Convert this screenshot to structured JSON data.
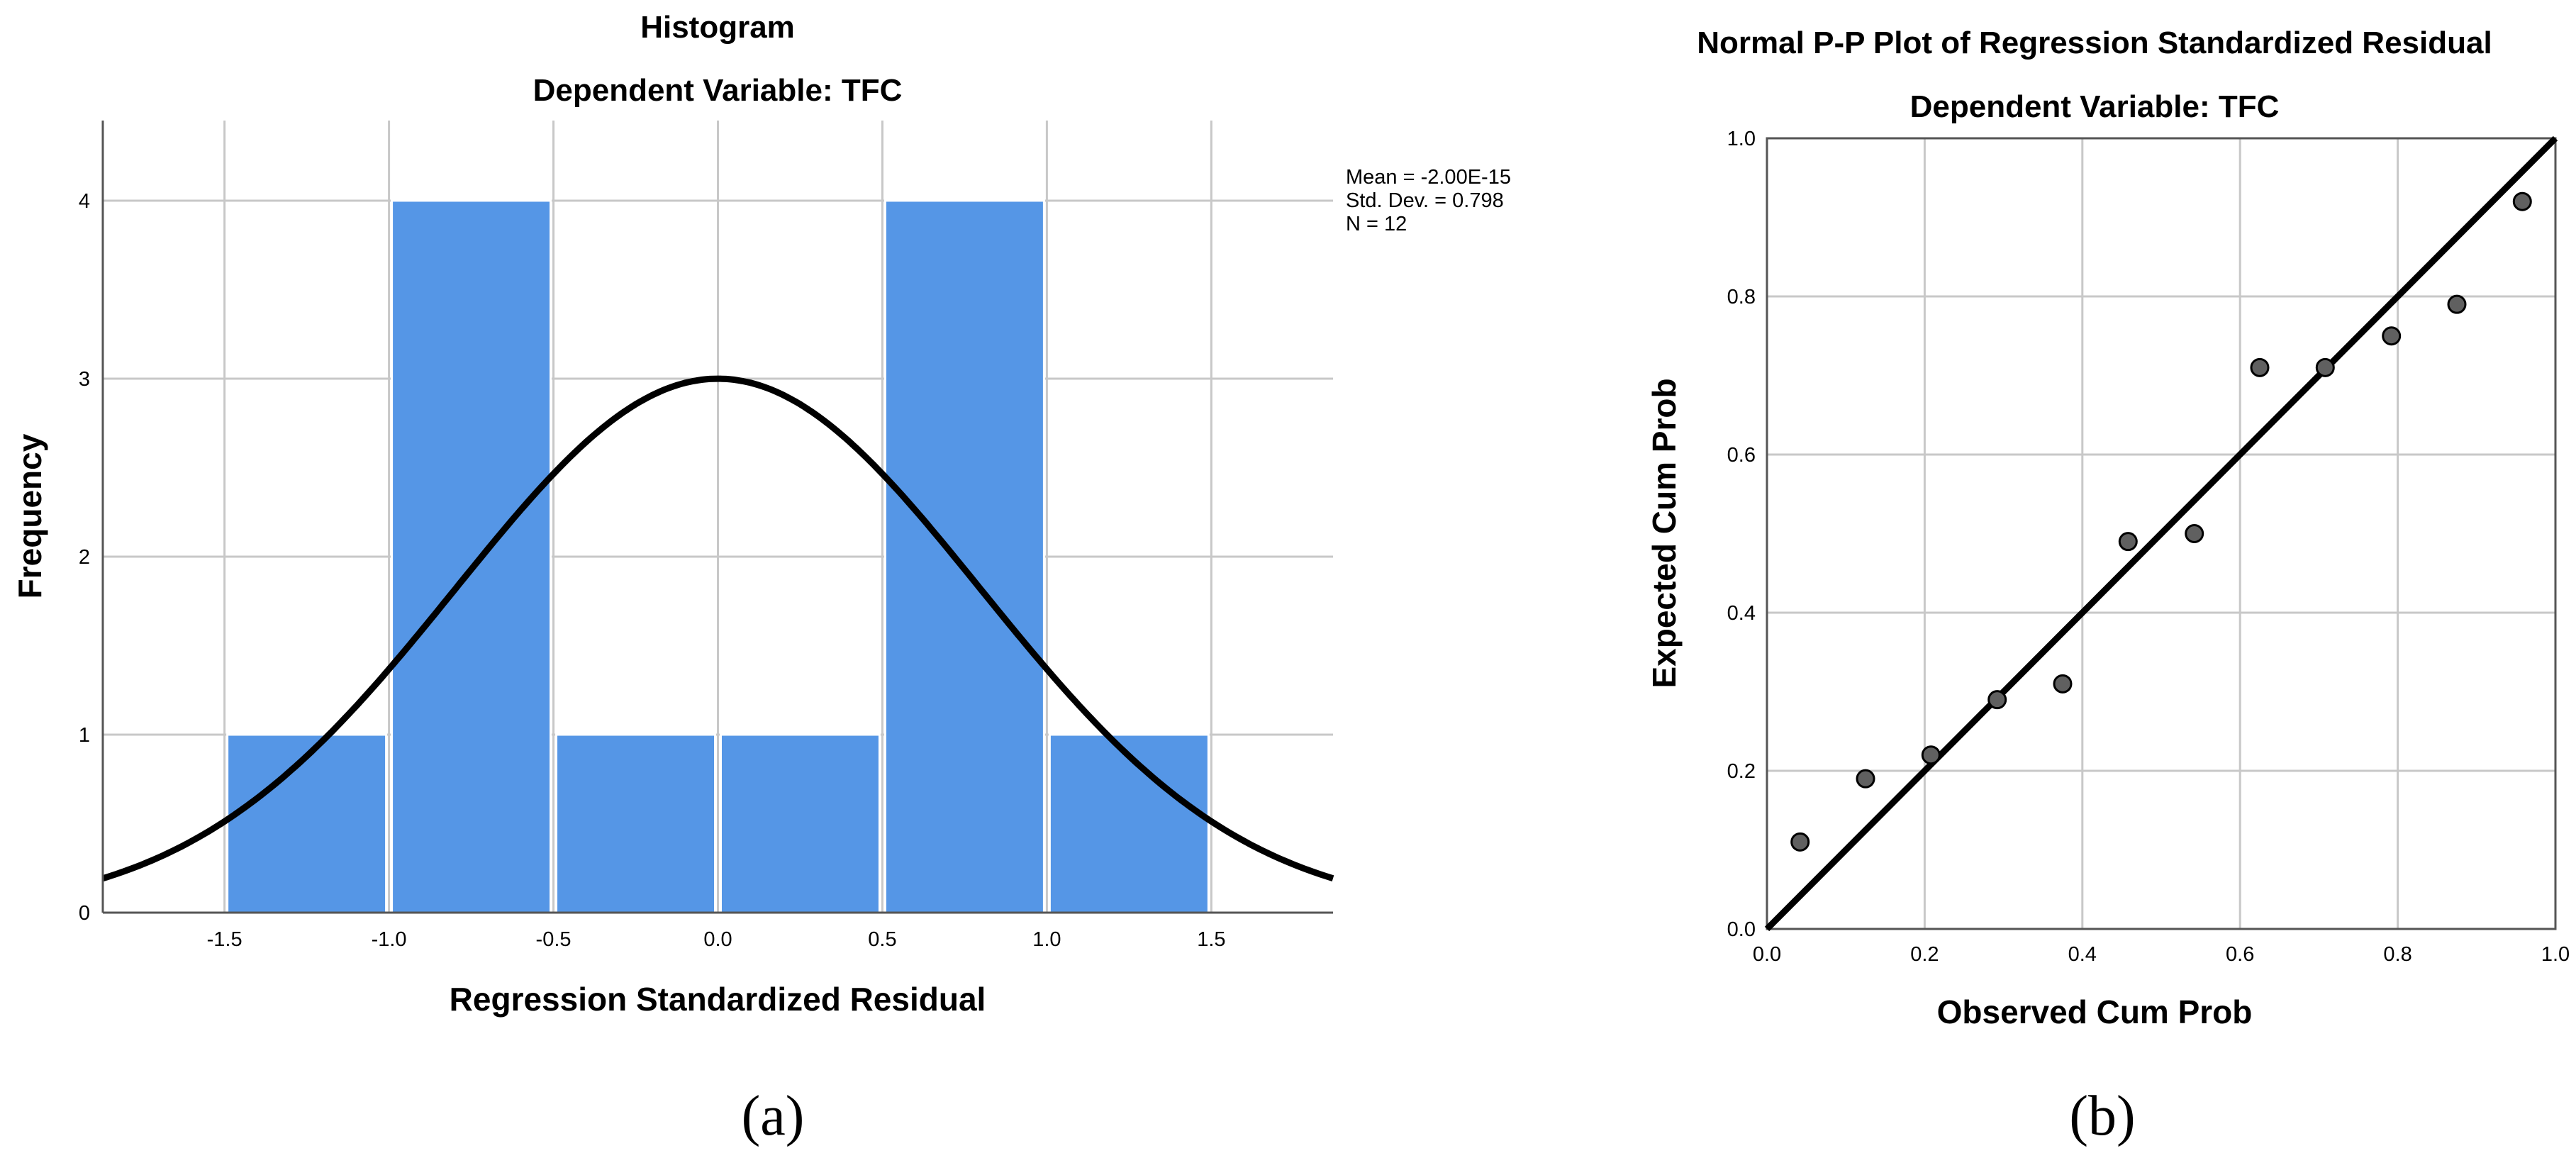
{
  "chart_data": [
    {
      "type": "bar",
      "subtype": "histogram",
      "title": "Histogram",
      "subtitle": "Dependent Variable: TFC",
      "xlabel": "Regression Standardized Residual",
      "ylabel": "Frequency",
      "xlim": [
        -1.87,
        1.87
      ],
      "ylim": [
        0,
        4.45
      ],
      "x_ticks": [
        -1.5,
        -1.0,
        -0.5,
        0.0,
        0.5,
        1.0,
        1.5
      ],
      "x_tick_labels": [
        "-1.5",
        "-1.0",
        "-0.5",
        "0.0",
        "0.5",
        "1.0",
        "1.5"
      ],
      "y_ticks": [
        0,
        1,
        2,
        3,
        4
      ],
      "y_tick_labels": [
        "0",
        "1",
        "2",
        "3",
        "4"
      ],
      "bins": [
        {
          "start": -1.5,
          "end": -1.0,
          "count": 1
        },
        {
          "start": -1.0,
          "end": -0.5,
          "count": 4
        },
        {
          "start": -0.5,
          "end": 0.0,
          "count": 1
        },
        {
          "start": 0.0,
          "end": 0.5,
          "count": 1
        },
        {
          "start": 0.5,
          "end": 1.0,
          "count": 4
        },
        {
          "start": 1.0,
          "end": 1.5,
          "count": 1
        }
      ],
      "normal_curve": {
        "mean": 0.0,
        "sd": 0.798,
        "n": 12,
        "bin_width": 0.5
      },
      "stats_lines": [
        "Mean = -2.00E-15",
        "Std. Dev. = 0.798",
        "N = 12"
      ],
      "grid": true,
      "caption": "(a)"
    },
    {
      "type": "scatter",
      "subtype": "pp-plot",
      "title": "Normal P-P Plot of Regression Standardized Residual",
      "subtitle": "Dependent Variable: TFC",
      "xlabel": "Observed Cum Prob",
      "ylabel": "Expected Cum Prob",
      "xlim": [
        0,
        1
      ],
      "ylim": [
        0,
        1
      ],
      "x_ticks": [
        0,
        0.2,
        0.4,
        0.6,
        0.8,
        1.0
      ],
      "x_tick_labels": [
        "0.0",
        "0.2",
        "0.4",
        "0.6",
        "0.8",
        "1.0"
      ],
      "y_ticks": [
        0,
        0.2,
        0.4,
        0.6,
        0.8,
        1.0
      ],
      "y_tick_labels": [
        "0.0",
        "0.2",
        "0.4",
        "0.6",
        "0.8",
        "1.0"
      ],
      "points": [
        {
          "x": 0.042,
          "y": 0.11
        },
        {
          "x": 0.125,
          "y": 0.19
        },
        {
          "x": 0.208,
          "y": 0.22
        },
        {
          "x": 0.292,
          "y": 0.29
        },
        {
          "x": 0.375,
          "y": 0.31
        },
        {
          "x": 0.458,
          "y": 0.49
        },
        {
          "x": 0.542,
          "y": 0.5
        },
        {
          "x": 0.625,
          "y": 0.71
        },
        {
          "x": 0.708,
          "y": 0.71
        },
        {
          "x": 0.792,
          "y": 0.75
        },
        {
          "x": 0.875,
          "y": 0.79
        },
        {
          "x": 0.958,
          "y": 0.92
        }
      ],
      "reference_line": {
        "from": [
          0,
          0
        ],
        "to": [
          1,
          1
        ]
      },
      "grid": true,
      "caption": "(b)"
    }
  ]
}
